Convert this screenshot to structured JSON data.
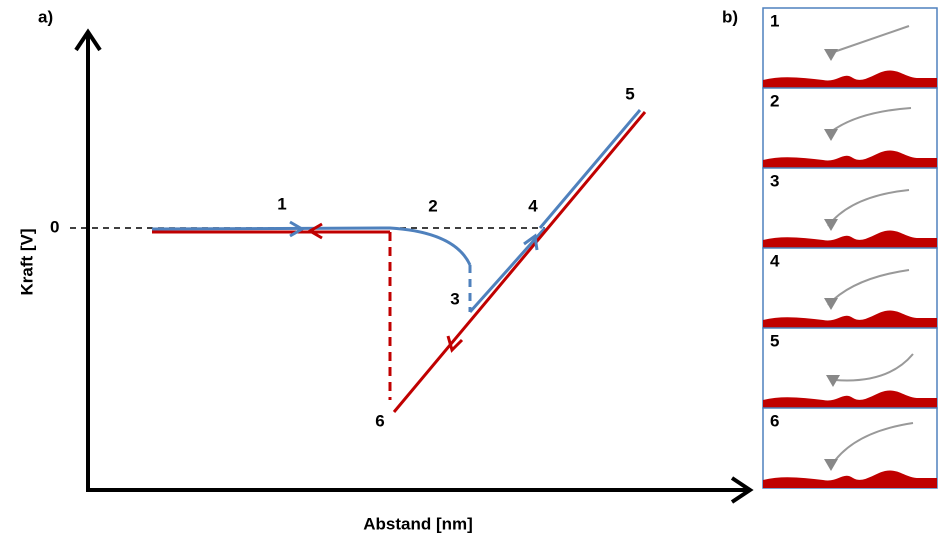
{
  "panel_a": {
    "label": "a)",
    "y_axis_label": "Kraft [V]",
    "x_axis_label": "Abstand [nm]",
    "zero_label": "0",
    "points": [
      "1",
      "2",
      "3",
      "4",
      "5",
      "6"
    ]
  },
  "panel_b": {
    "label": "b)",
    "panels": [
      {
        "label": "1"
      },
      {
        "label": "2"
      },
      {
        "label": "3"
      },
      {
        "label": "4"
      },
      {
        "label": "5"
      },
      {
        "label": "6"
      }
    ]
  }
}
